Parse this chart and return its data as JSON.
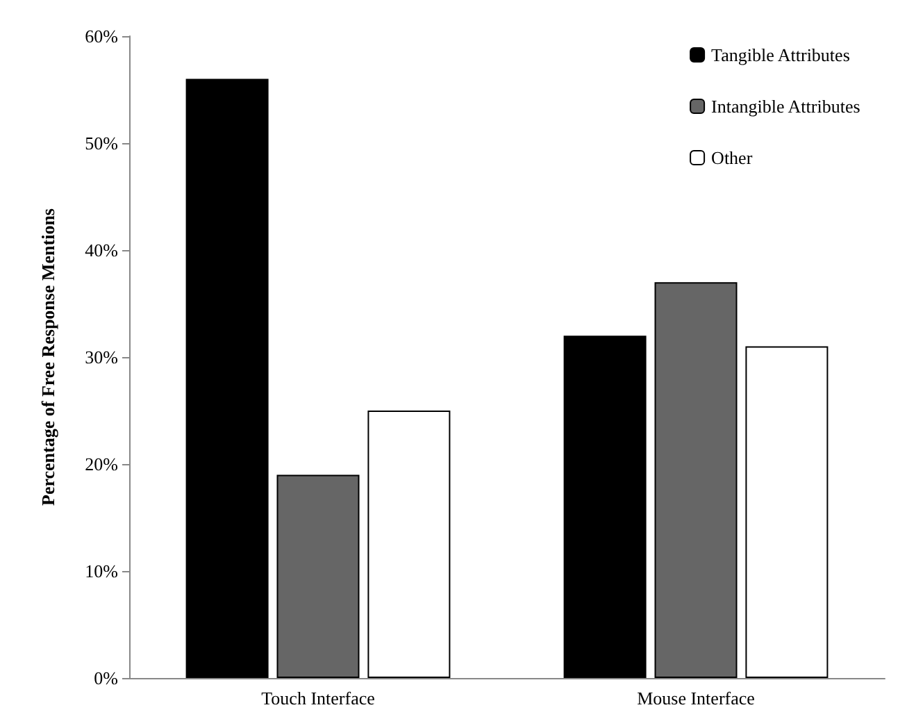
{
  "chart_data": {
    "type": "bar",
    "ylabel": "Percentage of Free Response Mentions",
    "categories": [
      "Touch Interface",
      "Mouse Interface"
    ],
    "series": [
      {
        "name": "Tangible Attributes",
        "color": "#000000",
        "values": [
          56,
          32
        ]
      },
      {
        "name": "Intangible Attributes",
        "color": "#666666",
        "values": [
          19,
          37
        ]
      },
      {
        "name": "Other",
        "color": "#ffffff",
        "values": [
          25,
          31
        ]
      }
    ],
    "ylim": [
      0,
      60
    ],
    "yticks": [
      {
        "value": 0,
        "label": "0%"
      },
      {
        "value": 10,
        "label": "10%"
      },
      {
        "value": 20,
        "label": "20%"
      },
      {
        "value": 30,
        "label": "30%"
      },
      {
        "value": 40,
        "label": "40%"
      },
      {
        "value": 50,
        "label": "50%"
      },
      {
        "value": 60,
        "label": "60%"
      }
    ],
    "grid": false,
    "legend": "top right"
  }
}
